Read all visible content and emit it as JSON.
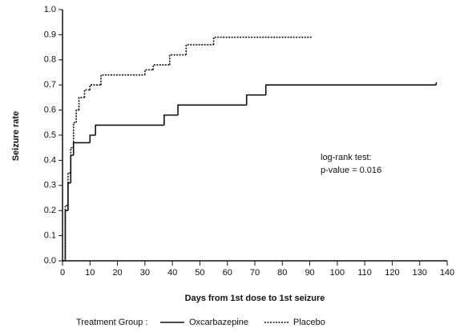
{
  "chart_data": {
    "type": "line",
    "step": true,
    "y_label": "Seizure rate",
    "x_label": "Days from 1st dose to 1st seizure",
    "annotations": [
      "log-rank test:",
      "p-value = 0.016"
    ],
    "legend_title": "Treatment Group :",
    "xlim": [
      0,
      140
    ],
    "xticks": [
      0,
      10,
      20,
      30,
      40,
      50,
      60,
      70,
      80,
      90,
      100,
      110,
      120,
      130,
      140
    ],
    "ylim": [
      0,
      1
    ],
    "yticks": [
      {
        "value": 0,
        "label": "0.0"
      },
      0.1,
      0.2,
      0.3,
      0.4,
      0.5,
      0.6,
      0.7,
      0.8,
      0.9,
      {
        "value": 1,
        "label": "1.0"
      }
    ],
    "series": [
      {
        "name": "Oxcarbazepine",
        "color": "#111111",
        "dash": "solid",
        "x": [
          0,
          1,
          2,
          3,
          4,
          10,
          12,
          37,
          42,
          67,
          74,
          136
        ],
        "values": [
          0,
          0.2,
          0.31,
          0.42,
          0.47,
          0.5,
          0.54,
          0.58,
          0.62,
          0.66,
          0.7,
          0.71
        ]
      },
      {
        "name": "Placebo",
        "color": "#111111",
        "dash": "dotted",
        "x": [
          0,
          1,
          2,
          3,
          4,
          5,
          6,
          8,
          10,
          14,
          30,
          33,
          39,
          45,
          55,
          91
        ],
        "values": [
          0,
          0.22,
          0.35,
          0.45,
          0.55,
          0.6,
          0.65,
          0.68,
          0.7,
          0.74,
          0.76,
          0.78,
          0.82,
          0.86,
          0.89,
          0.89
        ]
      }
    ]
  }
}
